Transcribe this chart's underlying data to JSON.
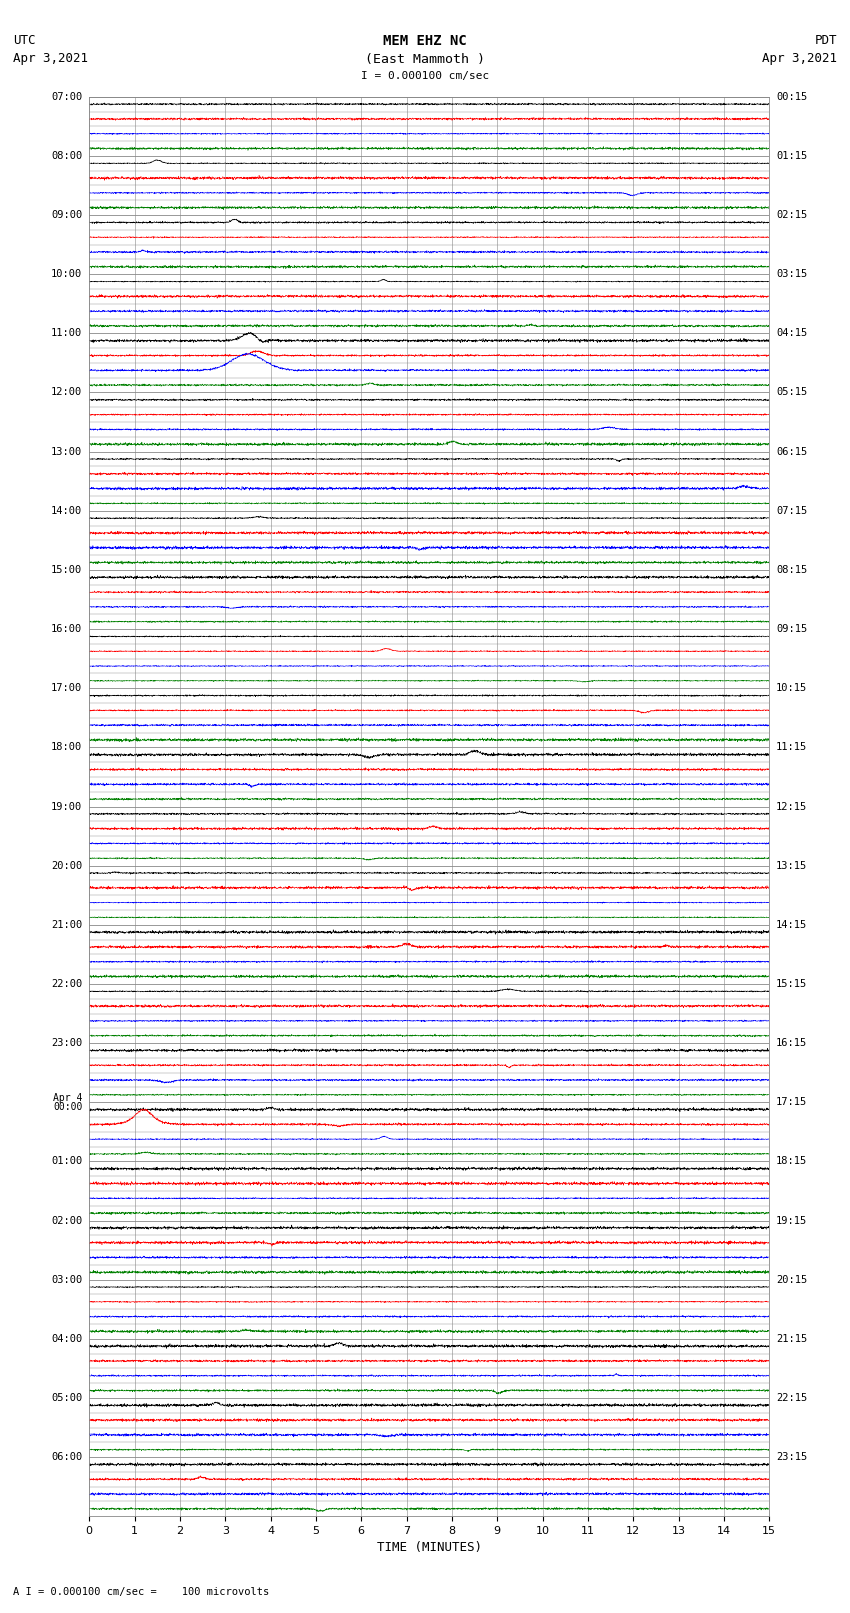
{
  "title_line1": "MEM EHZ NC",
  "title_line2": "(East Mammoth )",
  "scale_text": "I = 0.000100 cm/sec",
  "utc_label": "UTC",
  "utc_date": "Apr 3,2021",
  "pdt_label": "PDT",
  "pdt_date": "Apr 3,2021",
  "xlabel": "TIME (MINUTES)",
  "bottom_note": "A I = 0.000100 cm/sec =    100 microvolts",
  "xlim": [
    0,
    15
  ],
  "xticks": [
    0,
    1,
    2,
    3,
    4,
    5,
    6,
    7,
    8,
    9,
    10,
    11,
    12,
    13,
    14,
    15
  ],
  "fig_width": 8.5,
  "fig_height": 16.13,
  "dpi": 100,
  "bg_color": "#ffffff",
  "trace_colors": [
    "black",
    "red",
    "blue",
    "green"
  ],
  "num_rows": 96,
  "utc_times_labeled": {
    "0": "07:00",
    "4": "08:00",
    "8": "09:00",
    "12": "10:00",
    "16": "11:00",
    "20": "12:00",
    "24": "13:00",
    "28": "14:00",
    "32": "15:00",
    "36": "16:00",
    "40": "17:00",
    "44": "18:00",
    "48": "19:00",
    "52": "20:00",
    "56": "21:00",
    "60": "22:00",
    "64": "23:00",
    "68": "Apr 4\n00:00",
    "72": "01:00",
    "76": "02:00",
    "80": "03:00",
    "84": "04:00",
    "88": "05:00",
    "92": "06:00"
  },
  "pdt_times_labeled": {
    "0": "00:15",
    "4": "01:15",
    "8": "02:15",
    "12": "03:15",
    "16": "04:15",
    "20": "05:15",
    "24": "06:15",
    "28": "07:15",
    "32": "08:15",
    "36": "09:15",
    "40": "10:15",
    "44": "11:15",
    "48": "12:15",
    "52": "13:15",
    "56": "14:15",
    "60": "15:15",
    "64": "16:15",
    "68": "17:15",
    "72": "18:15",
    "76": "19:15",
    "80": "20:15",
    "84": "21:15",
    "88": "22:15",
    "92": "23:15"
  },
  "noise_amplitude": 0.03,
  "grid_color": "#888888",
  "grid_linewidth": 0.4,
  "trace_linewidth": 0.4,
  "seed": 42
}
